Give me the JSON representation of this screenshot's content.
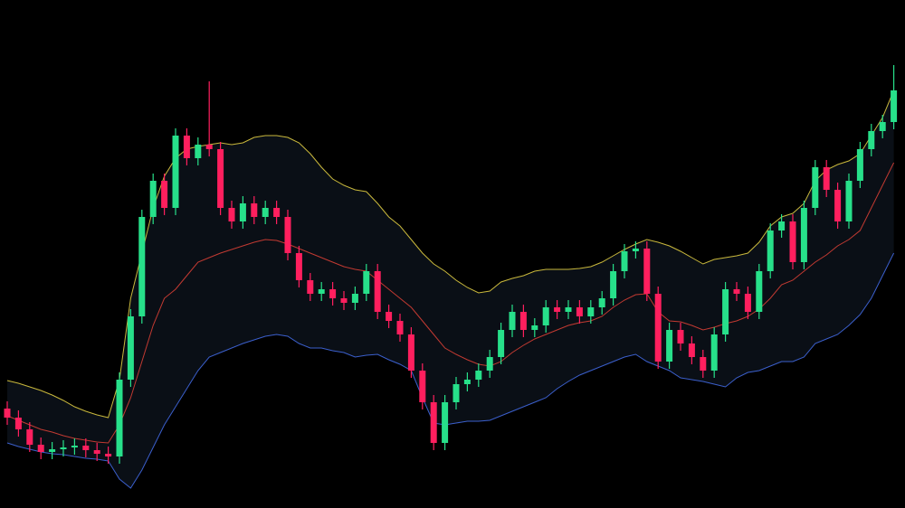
{
  "chart_data": {
    "type": "candlestick",
    "ylim": [
      0,
      562
    ],
    "up_color": "#27e08a",
    "down_color": "#ff1f5e",
    "band_fill": "#0a0f16",
    "open": [
      110,
      100,
      87,
      70,
      62,
      65,
      67,
      69,
      64,
      60,
      57,
      142,
      212,
      322,
      362,
      332,
      412,
      387,
      402,
      397,
      332,
      317,
      337,
      322,
      332,
      322,
      282,
      252,
      237,
      242,
      232,
      227,
      237,
      262,
      217,
      207,
      192,
      152,
      117,
      72,
      117,
      137,
      142,
      152,
      167,
      197,
      217,
      197,
      202,
      222,
      217,
      222,
      212,
      222,
      232,
      262,
      284,
      287,
      237,
      162,
      197,
      182,
      167,
      152,
      192,
      242,
      237,
      217,
      262,
      307,
      317,
      272,
      332,
      377,
      352,
      317,
      362,
      397,
      417,
      427
    ],
    "high": [
      118,
      108,
      95,
      78,
      73,
      75,
      77,
      77,
      72,
      68,
      150,
      220,
      330,
      370,
      370,
      420,
      420,
      410,
      472,
      405,
      340,
      345,
      345,
      340,
      340,
      330,
      290,
      260,
      250,
      250,
      240,
      245,
      270,
      270,
      225,
      215,
      200,
      160,
      125,
      125,
      145,
      150,
      160,
      175,
      205,
      225,
      225,
      210,
      230,
      230,
      230,
      230,
      230,
      240,
      270,
      292,
      295,
      295,
      245,
      205,
      205,
      190,
      175,
      200,
      250,
      250,
      245,
      270,
      315,
      325,
      325,
      340,
      385,
      385,
      360,
      370,
      405,
      425,
      435,
      490
    ],
    "low": [
      92,
      79,
      62,
      54,
      54,
      57,
      59,
      56,
      52,
      49,
      49,
      134,
      204,
      314,
      324,
      324,
      379,
      379,
      389,
      324,
      309,
      309,
      314,
      314,
      314,
      274,
      244,
      229,
      229,
      224,
      219,
      219,
      229,
      209,
      199,
      184,
      144,
      109,
      64,
      64,
      109,
      129,
      134,
      144,
      159,
      189,
      189,
      189,
      194,
      209,
      209,
      204,
      204,
      214,
      224,
      254,
      276,
      229,
      154,
      154,
      174,
      159,
      144,
      144,
      184,
      229,
      209,
      209,
      254,
      299,
      264,
      264,
      324,
      344,
      309,
      309,
      354,
      389,
      409,
      419
    ],
    "close": [
      100,
      87,
      70,
      62,
      65,
      67,
      69,
      64,
      60,
      57,
      142,
      212,
      322,
      362,
      332,
      412,
      387,
      402,
      397,
      332,
      317,
      337,
      322,
      332,
      322,
      282,
      252,
      237,
      242,
      232,
      227,
      237,
      262,
      217,
      207,
      192,
      152,
      117,
      72,
      117,
      137,
      142,
      152,
      167,
      197,
      217,
      197,
      202,
      222,
      217,
      222,
      212,
      222,
      232,
      262,
      284,
      287,
      237,
      162,
      197,
      182,
      167,
      152,
      192,
      242,
      237,
      217,
      262,
      307,
      317,
      272,
      332,
      377,
      352,
      317,
      362,
      397,
      417,
      427,
      462
    ],
    "bands": [
      {
        "color": "#c9b83c",
        "values": [
          141,
          138,
          134,
          130,
          125,
          119,
          112,
          107,
          103,
          100,
          142,
          232,
          282,
          332,
          367,
          387,
          397,
          400,
          402,
          404,
          402,
          404,
          410,
          412,
          412,
          410,
          404,
          392,
          377,
          364,
          357,
          352,
          350,
          337,
          322,
          312,
          297,
          282,
          270,
          262,
          252,
          244,
          238,
          240,
          250,
          254,
          257,
          262,
          264,
          264,
          264,
          265,
          267,
          272,
          279,
          286,
          292,
          297,
          294,
          290,
          284,
          277,
          270,
          275,
          277,
          279,
          282,
          294,
          312,
          322,
          326,
          337,
          362,
          374,
          380,
          384,
          392,
          412,
          432,
          462
        ]
      },
      {
        "color": "#c23a32",
        "values": [
          102,
          97,
          92,
          87,
          84,
          80,
          77,
          75,
          73,
          72,
          92,
          122,
          162,
          202,
          232,
          242,
          257,
          272,
          277,
          282,
          286,
          290,
          294,
          297,
          296,
          292,
          287,
          282,
          277,
          272,
          267,
          264,
          262,
          252,
          242,
          232,
          222,
          207,
          192,
          177,
          170,
          164,
          159,
          157,
          162,
          172,
          180,
          187,
          192,
          197,
          202,
          205,
          207,
          212,
          222,
          230,
          236,
          237,
          217,
          207,
          206,
          202,
          197,
          200,
          204,
          207,
          212,
          220,
          232,
          247,
          252,
          262,
          272,
          280,
          290,
          297,
          307,
          332,
          357,
          382
        ]
      },
      {
        "color": "#3b5fcc",
        "values": [
          72,
          68,
          65,
          62,
          60,
          59,
          57,
          55,
          54,
          52,
          32,
          22,
          42,
          67,
          92,
          112,
          132,
          152,
          167,
          172,
          177,
          182,
          186,
          190,
          192,
          190,
          182,
          177,
          177,
          174,
          172,
          167,
          169,
          170,
          164,
          159,
          152,
          122,
          94,
          92,
          94,
          96,
          96,
          97,
          102,
          107,
          112,
          117,
          122,
          132,
          140,
          147,
          152,
          157,
          162,
          167,
          170,
          162,
          157,
          152,
          144,
          142,
          140,
          137,
          134,
          144,
          150,
          152,
          157,
          162,
          162,
          167,
          182,
          187,
          192,
          202,
          214,
          232,
          257,
          282
        ]
      }
    ]
  }
}
